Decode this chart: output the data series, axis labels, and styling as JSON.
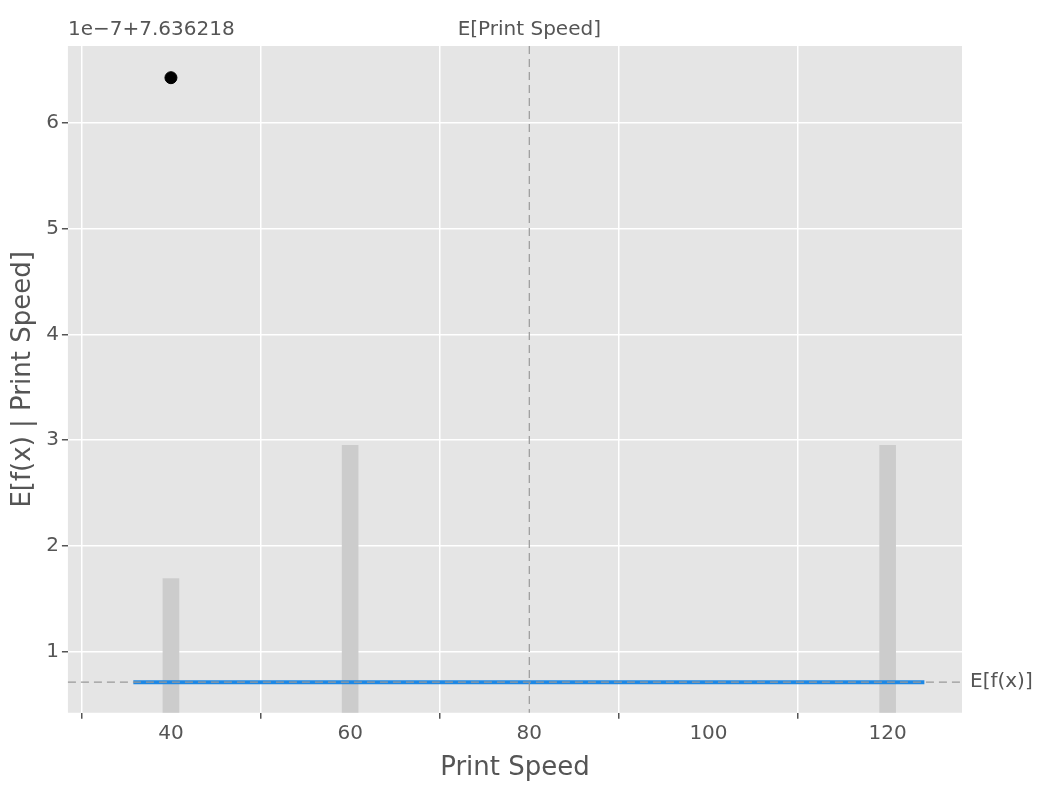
{
  "chart_data": {
    "type": "line",
    "xlabel": "Print Speed",
    "ylabel": "E[f(x) | Print Speed]",
    "annotations": [
      "1e−7+7.636218"
    ],
    "xlim": [
      28.5,
      128.3
    ],
    "xticks": [
      40,
      60,
      80,
      100,
      120
    ],
    "ylim": [
      0.42,
      6.73
    ],
    "yticks": [
      1,
      2,
      3,
      4,
      5,
      6
    ],
    "grid": true,
    "legend": false,
    "marker": "none",
    "line_style": "solid",
    "series": [
      {
        "type": "bar",
        "color": "#cccccc",
        "x": [
          40,
          60,
          120
        ],
        "values": [
          1.69,
          2.95,
          2.95
        ]
      },
      {
        "color": "#1e88e5",
        "x": [
          35.8,
          124.1
        ],
        "values": [
          0.71,
          0.71
        ]
      },
      {
        "type": "scatter",
        "color": "#000000",
        "marker": "circle",
        "x": [
          40
        ],
        "values": [
          6.43
        ]
      }
    ],
    "ref_lines": [
      {
        "axis": "x",
        "value": 80,
        "label": "E[Print Speed]",
        "color": "#999999",
        "line_style": "dashed"
      },
      {
        "axis": "y",
        "value": 0.71,
        "label": "E[f(x)]",
        "color": "#999999",
        "line_style": "dashed"
      }
    ]
  }
}
